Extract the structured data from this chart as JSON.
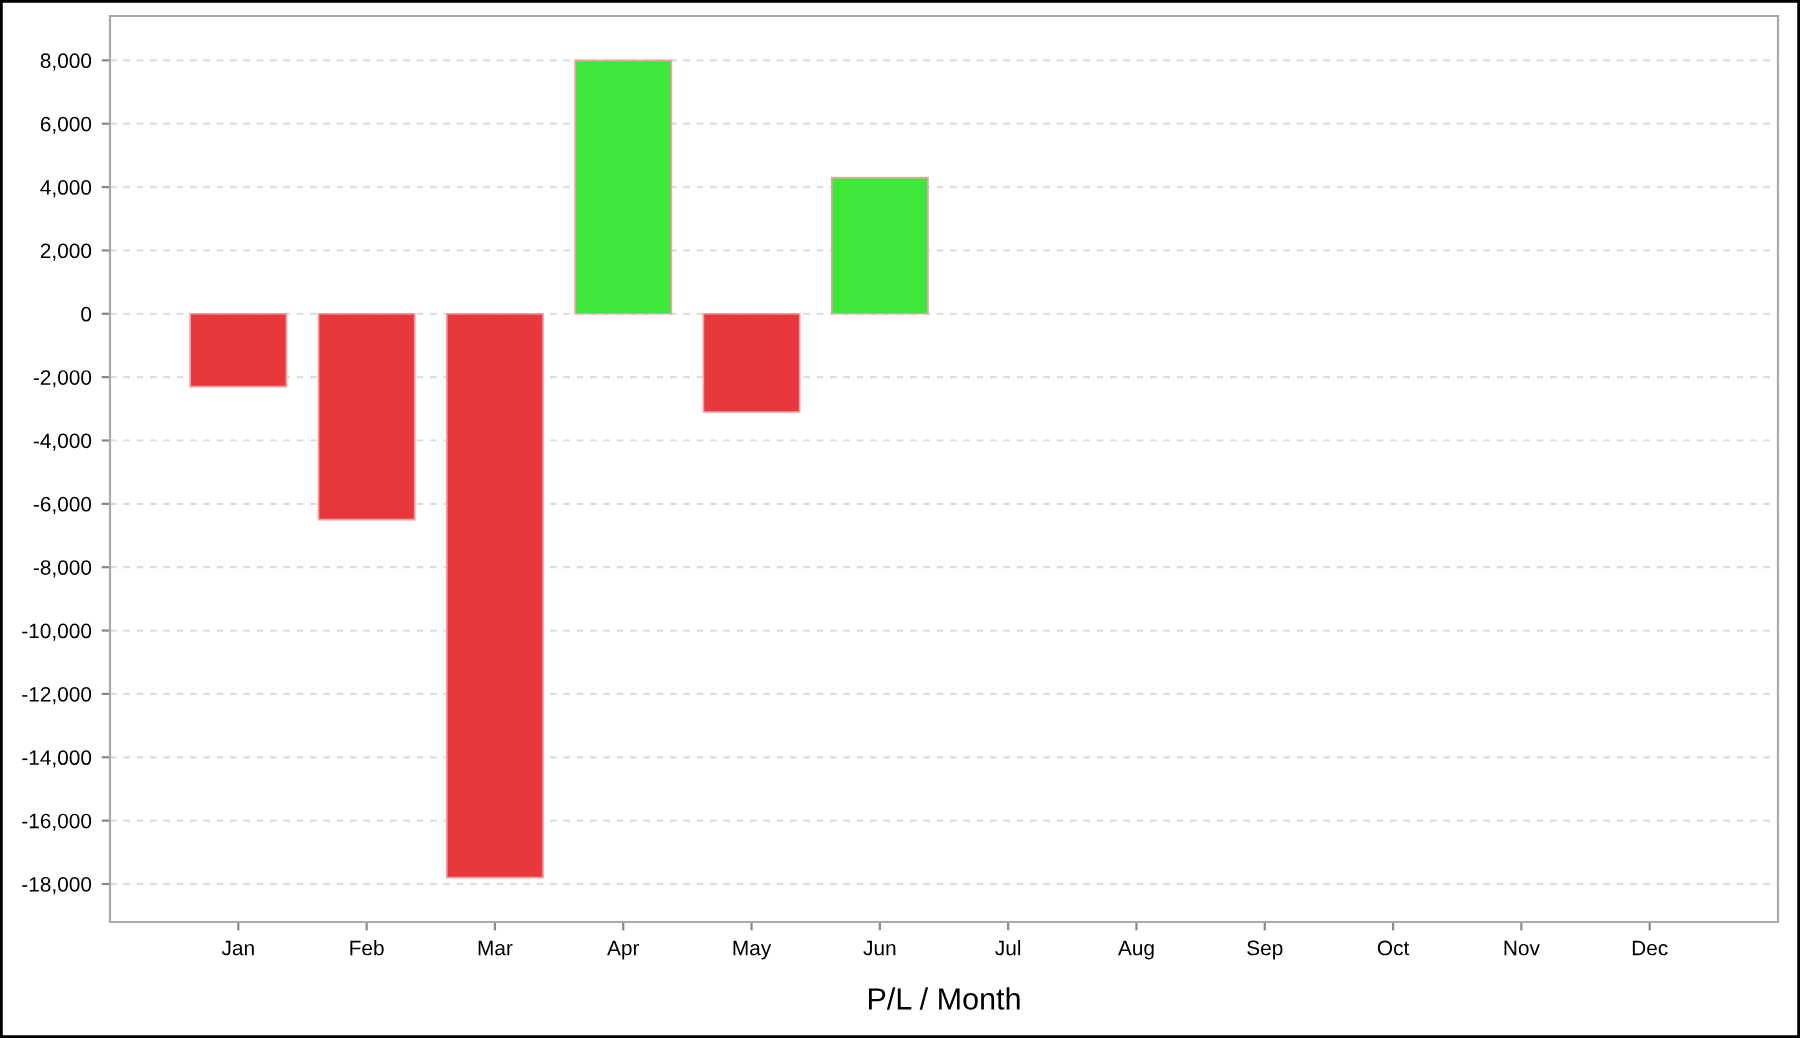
{
  "chart_data": {
    "type": "bar",
    "xlabel": "P/L / Month",
    "categories": [
      "Jan",
      "Feb",
      "Mar",
      "Apr",
      "May",
      "Jun",
      "Jul",
      "Aug",
      "Sep",
      "Oct",
      "Nov",
      "Dec"
    ],
    "values": [
      -2300,
      -6500,
      -17800,
      8000,
      -3100,
      4300,
      null,
      null,
      null,
      null,
      null,
      null
    ],
    "colors": [
      "#e8383d",
      "#e8383d",
      "#e8383d",
      "#3de83a",
      "#e8383d",
      "#3de83a",
      "#e8383d",
      "#e8383d",
      "#e8383d",
      "#e8383d",
      "#e8383d",
      "#e8383d"
    ],
    "ylim": [
      -19200,
      9400
    ],
    "yticks": [
      {
        "value": -18000,
        "label": "-18,000"
      },
      {
        "value": -16000,
        "label": "-16,000"
      },
      {
        "value": -14000,
        "label": "-14,000"
      },
      {
        "value": -12000,
        "label": "-12,000"
      },
      {
        "value": -10000,
        "label": "-10,000"
      },
      {
        "value": -8000,
        "label": "-8,000"
      },
      {
        "value": -6000,
        "label": "-6,000"
      },
      {
        "value": -4000,
        "label": "-4,000"
      },
      {
        "value": -2000,
        "label": "-2,000"
      },
      0,
      {
        "value": 2000,
        "label": "2,000"
      },
      {
        "value": 4000,
        "label": "4,000"
      },
      {
        "value": 6000,
        "label": "6,000"
      },
      {
        "value": 8000,
        "label": "8,000"
      }
    ],
    "grid": "y"
  }
}
